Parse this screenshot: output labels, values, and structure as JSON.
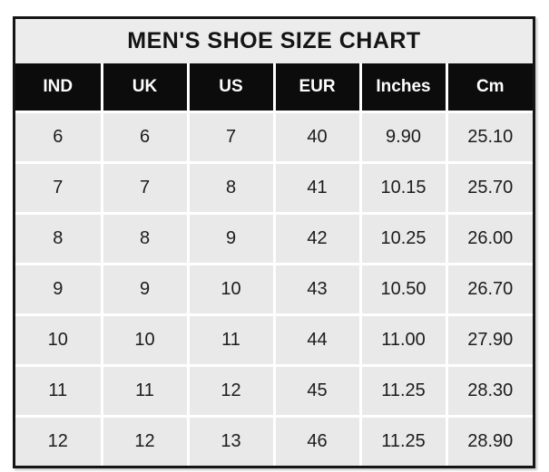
{
  "title": "MEN'S SHOE SIZE CHART",
  "table": {
    "headers": [
      "IND",
      "UK",
      "US",
      "EUR",
      "Inches",
      "Cm"
    ],
    "rows": [
      [
        "6",
        "6",
        "7",
        "40",
        "9.90",
        "25.10"
      ],
      [
        "7",
        "7",
        "8",
        "41",
        "10.15",
        "25.70"
      ],
      [
        "8",
        "8",
        "9",
        "42",
        "10.25",
        "26.00"
      ],
      [
        "9",
        "9",
        "10",
        "43",
        "10.50",
        "26.70"
      ],
      [
        "10",
        "10",
        "11",
        "44",
        "11.00",
        "27.90"
      ],
      [
        "11",
        "11",
        "12",
        "45",
        "11.25",
        "28.30"
      ],
      [
        "12",
        "12",
        "13",
        "46",
        "11.25",
        "28.90"
      ]
    ]
  },
  "colors": {
    "border": "#151515",
    "title_bg": "#ececec",
    "header_bg": "#0c0c0c",
    "header_text": "#fdfdfd",
    "cell_bg": "#e9e9e9",
    "grid_line": "#ffffff",
    "text": "#1c1c1c"
  },
  "chart_data": {
    "type": "table",
    "title": "MEN'S SHOE SIZE CHART",
    "columns": [
      "IND",
      "UK",
      "US",
      "EUR",
      "Inches",
      "Cm"
    ],
    "rows": [
      [
        6,
        6,
        7,
        40,
        9.9,
        25.1
      ],
      [
        7,
        7,
        8,
        41,
        10.15,
        25.7
      ],
      [
        8,
        8,
        9,
        42,
        10.25,
        26.0
      ],
      [
        9,
        9,
        10,
        43,
        10.5,
        26.7
      ],
      [
        10,
        10,
        11,
        44,
        11.0,
        27.9
      ],
      [
        11,
        11,
        12,
        45,
        11.25,
        28.3
      ],
      [
        12,
        12,
        13,
        46,
        11.25,
        28.9
      ]
    ]
  }
}
